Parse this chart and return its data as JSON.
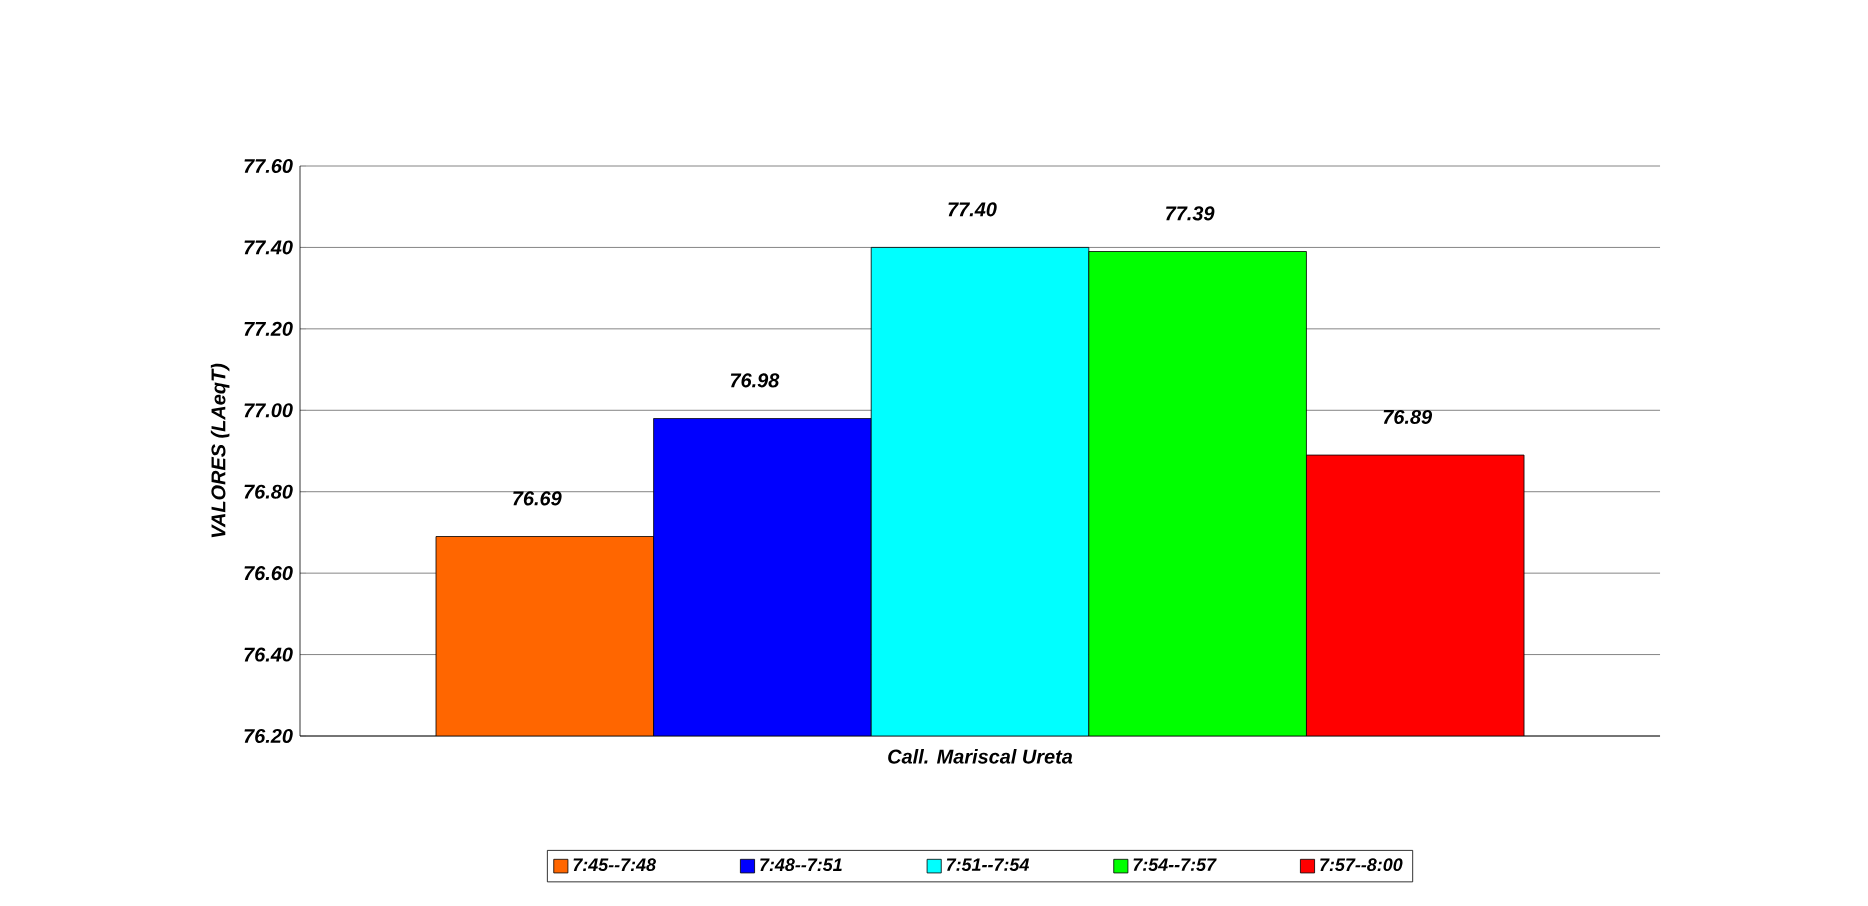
{
  "chart_data": {
    "type": "bar",
    "ylabel": "VALORES (LAeqT)",
    "categories": [
      "Call. Mariscal Ureta"
    ],
    "series": [
      {
        "name": "7:45--7:48",
        "color": "#ff6600",
        "values": [
          76.69
        ],
        "value_labels": [
          "76.69"
        ]
      },
      {
        "name": "7:48--7:51",
        "color": "#0000ff",
        "values": [
          76.98
        ],
        "value_labels": [
          "76.98"
        ]
      },
      {
        "name": "7:51--7:54",
        "color": "#00ffff",
        "values": [
          77.4
        ],
        "value_labels": [
          "77.40"
        ]
      },
      {
        "name": "7:54--7:57",
        "color": "#00ff00",
        "values": [
          77.39
        ],
        "value_labels": [
          "77.39"
        ]
      },
      {
        "name": "7:57--8:00",
        "color": "#ff0000",
        "values": [
          76.89
        ],
        "value_labels": [
          "76.89"
        ]
      }
    ],
    "ylim": [
      76.2,
      77.6
    ],
    "yticks": [
      {
        "value": 76.2,
        "label": "76.20"
      },
      {
        "value": 76.4,
        "label": "76.40"
      },
      {
        "value": 76.6,
        "label": "76.60"
      },
      {
        "value": 76.8,
        "label": "76.80"
      },
      {
        "value": 77.0,
        "label": "77.00"
      },
      {
        "value": 77.2,
        "label": "77.20"
      },
      {
        "value": 77.4,
        "label": "77.40"
      },
      {
        "value": 77.6,
        "label": "77.60"
      }
    ],
    "grid": "y",
    "legend": "bottom"
  }
}
